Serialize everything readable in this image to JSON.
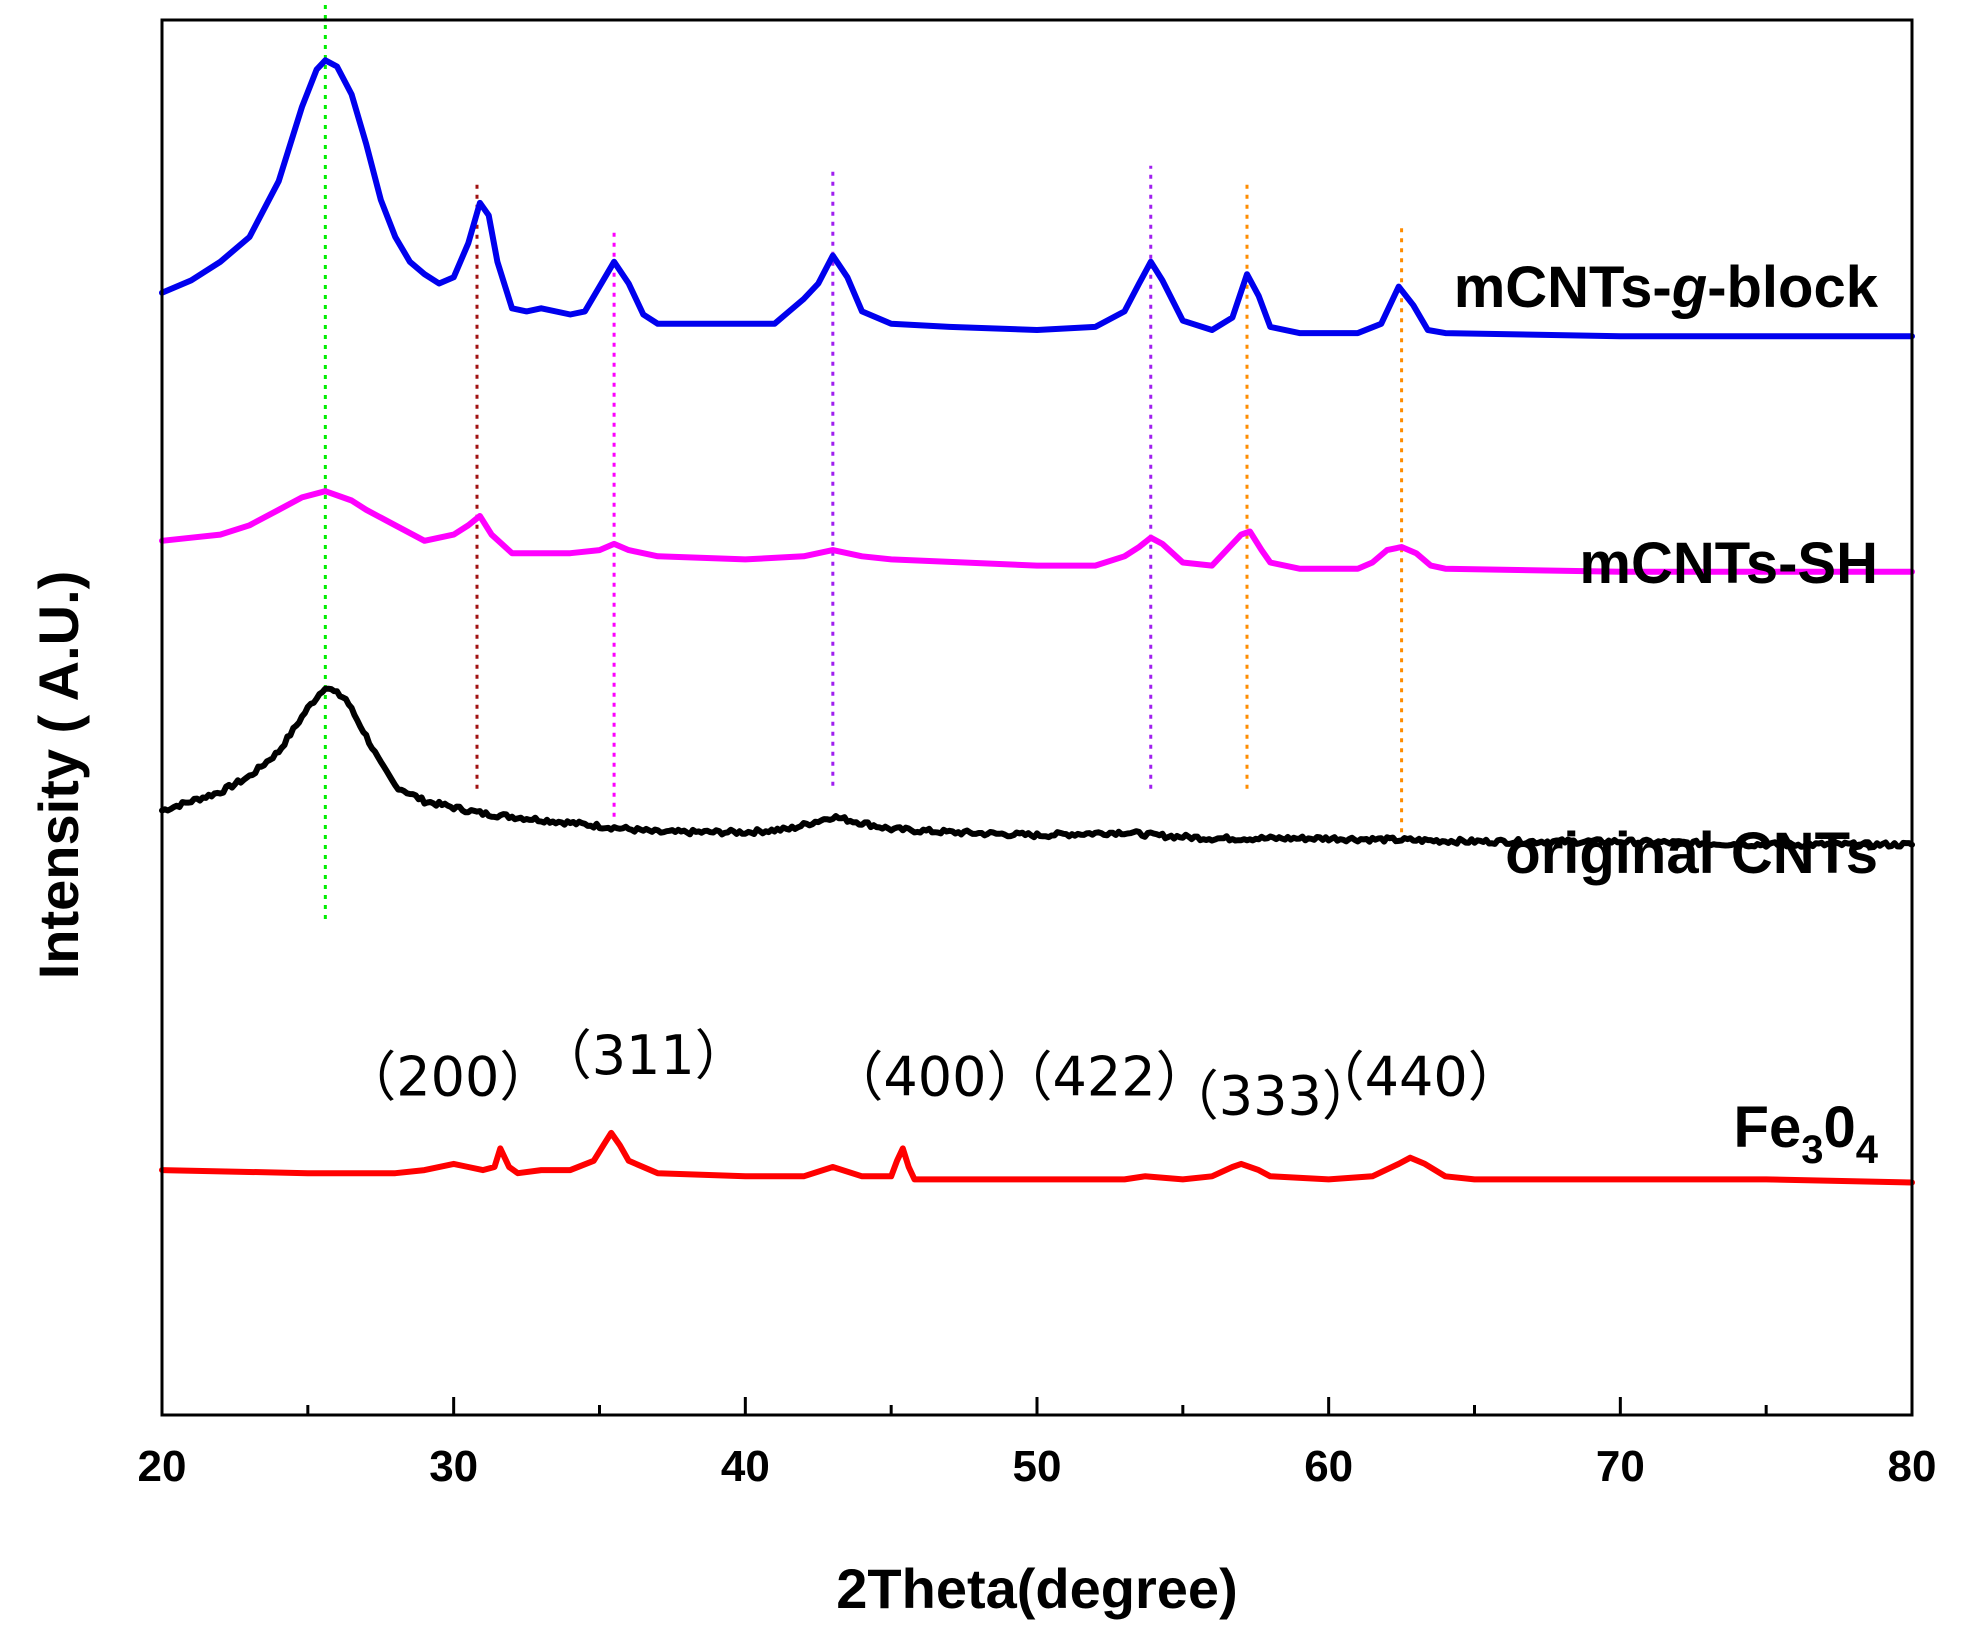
{
  "chart_data": {
    "type": "line",
    "title": "",
    "xlabel": "2Theta(degree)",
    "ylabel": "Intensity ( A.U.)",
    "xlim": [
      20,
      80
    ],
    "ylim": [
      0,
      4.5
    ],
    "grid": false,
    "yticks_visible": false,
    "xticks": [
      20,
      30,
      40,
      50,
      60,
      70,
      80
    ],
    "xtick_labels": [
      "20",
      "30",
      "40",
      "50",
      "60",
      "70",
      "80"
    ],
    "series": [
      {
        "name": "mCNTs-g-block",
        "label_parts": [
          {
            "text": "mCNTs-",
            "style": "normal",
            "baseline": "normal"
          },
          {
            "text": "g",
            "style": "italic",
            "baseline": "normal"
          },
          {
            "text": "-block",
            "style": "normal",
            "baseline": "normal"
          }
        ],
        "color": "#0000ee",
        "points": [
          [
            20,
            3.62
          ],
          [
            21,
            3.66
          ],
          [
            22,
            3.72
          ],
          [
            23,
            3.8
          ],
          [
            24,
            3.98
          ],
          [
            24.8,
            4.22
          ],
          [
            25.3,
            4.34
          ],
          [
            25.6,
            4.37
          ],
          [
            26,
            4.35
          ],
          [
            26.5,
            4.26
          ],
          [
            27,
            4.1
          ],
          [
            27.5,
            3.92
          ],
          [
            28,
            3.8
          ],
          [
            28.5,
            3.72
          ],
          [
            29,
            3.68
          ],
          [
            29.5,
            3.65
          ],
          [
            30,
            3.67
          ],
          [
            30.5,
            3.78
          ],
          [
            30.9,
            3.91
          ],
          [
            31.2,
            3.87
          ],
          [
            31.5,
            3.72
          ],
          [
            32,
            3.57
          ],
          [
            32.5,
            3.56
          ],
          [
            33,
            3.57
          ],
          [
            34,
            3.55
          ],
          [
            34.5,
            3.56
          ],
          [
            35,
            3.64
          ],
          [
            35.5,
            3.72
          ],
          [
            36,
            3.65
          ],
          [
            36.5,
            3.55
          ],
          [
            37,
            3.52
          ],
          [
            38,
            3.52
          ],
          [
            40,
            3.52
          ],
          [
            41,
            3.52
          ],
          [
            41.5,
            3.56
          ],
          [
            42,
            3.6
          ],
          [
            42.5,
            3.65
          ],
          [
            43,
            3.74
          ],
          [
            43.5,
            3.67
          ],
          [
            44,
            3.56
          ],
          [
            45,
            3.52
          ],
          [
            47,
            3.51
          ],
          [
            50,
            3.5
          ],
          [
            52,
            3.51
          ],
          [
            53,
            3.56
          ],
          [
            53.5,
            3.65
          ],
          [
            53.9,
            3.72
          ],
          [
            54.3,
            3.66
          ],
          [
            55,
            3.53
          ],
          [
            56,
            3.5
          ],
          [
            56.7,
            3.54
          ],
          [
            57.2,
            3.68
          ],
          [
            57.6,
            3.61
          ],
          [
            58,
            3.51
          ],
          [
            59,
            3.49
          ],
          [
            61,
            3.49
          ],
          [
            61.8,
            3.52
          ],
          [
            62.4,
            3.64
          ],
          [
            62.9,
            3.58
          ],
          [
            63.4,
            3.5
          ],
          [
            64,
            3.49
          ],
          [
            70,
            3.48
          ],
          [
            75,
            3.48
          ],
          [
            80,
            3.48
          ]
        ]
      },
      {
        "name": "mCNTs-SH",
        "label_parts": [
          {
            "text": "mCNTs-SH",
            "style": "normal",
            "baseline": "normal"
          }
        ],
        "color": "#ff00ff",
        "points": [
          [
            20,
            2.82
          ],
          [
            21,
            2.83
          ],
          [
            22,
            2.84
          ],
          [
            23,
            2.87
          ],
          [
            24,
            2.92
          ],
          [
            24.8,
            2.96
          ],
          [
            25.6,
            2.98
          ],
          [
            26.5,
            2.95
          ],
          [
            27,
            2.92
          ],
          [
            28,
            2.87
          ],
          [
            29,
            2.82
          ],
          [
            30,
            2.84
          ],
          [
            30.5,
            2.87
          ],
          [
            30.9,
            2.9
          ],
          [
            31.3,
            2.84
          ],
          [
            32,
            2.78
          ],
          [
            33,
            2.78
          ],
          [
            34,
            2.78
          ],
          [
            35,
            2.79
          ],
          [
            35.5,
            2.81
          ],
          [
            36,
            2.79
          ],
          [
            37,
            2.77
          ],
          [
            40,
            2.76
          ],
          [
            42,
            2.77
          ],
          [
            43,
            2.79
          ],
          [
            44,
            2.77
          ],
          [
            45,
            2.76
          ],
          [
            50,
            2.74
          ],
          [
            52,
            2.74
          ],
          [
            53,
            2.77
          ],
          [
            53.5,
            2.8
          ],
          [
            53.9,
            2.83
          ],
          [
            54.3,
            2.81
          ],
          [
            55,
            2.75
          ],
          [
            56,
            2.74
          ],
          [
            56.5,
            2.79
          ],
          [
            57,
            2.84
          ],
          [
            57.3,
            2.85
          ],
          [
            57.7,
            2.79
          ],
          [
            58,
            2.75
          ],
          [
            59,
            2.73
          ],
          [
            61,
            2.73
          ],
          [
            61.5,
            2.75
          ],
          [
            62,
            2.79
          ],
          [
            62.5,
            2.8
          ],
          [
            63,
            2.78
          ],
          [
            63.5,
            2.74
          ],
          [
            64,
            2.73
          ],
          [
            70,
            2.72
          ],
          [
            75,
            2.72
          ],
          [
            80,
            2.72
          ]
        ]
      },
      {
        "name": "original CNTs",
        "label_parts": [
          {
            "text": "original CNTs",
            "style": "normal",
            "baseline": "normal"
          }
        ],
        "color": "#000000",
        "noise": 0.008,
        "points": [
          [
            20,
            1.95
          ],
          [
            21,
            1.98
          ],
          [
            22,
            2.01
          ],
          [
            23,
            2.06
          ],
          [
            24,
            2.14
          ],
          [
            25,
            2.28
          ],
          [
            25.6,
            2.35
          ],
          [
            26.3,
            2.31
          ],
          [
            27,
            2.19
          ],
          [
            27.5,
            2.1
          ],
          [
            28,
            2.03
          ],
          [
            29,
            1.98
          ],
          [
            30,
            1.96
          ],
          [
            31,
            1.94
          ],
          [
            32,
            1.93
          ],
          [
            33,
            1.92
          ],
          [
            35,
            1.9
          ],
          [
            37,
            1.88
          ],
          [
            40,
            1.88
          ],
          [
            41.5,
            1.89
          ],
          [
            43,
            1.93
          ],
          [
            44,
            1.91
          ],
          [
            45,
            1.89
          ],
          [
            47,
            1.88
          ],
          [
            50,
            1.87
          ],
          [
            53,
            1.88
          ],
          [
            54,
            1.87
          ],
          [
            56,
            1.86
          ],
          [
            60,
            1.86
          ],
          [
            65,
            1.85
          ],
          [
            70,
            1.85
          ],
          [
            75,
            1.84
          ],
          [
            80,
            1.84
          ]
        ]
      },
      {
        "name": "Fe3O4",
        "label_parts": [
          {
            "text": "Fe",
            "style": "normal",
            "baseline": "normal"
          },
          {
            "text": "3",
            "style": "normal",
            "baseline": "sub"
          },
          {
            "text": "0",
            "style": "normal",
            "baseline": "normal"
          },
          {
            "text": "4",
            "style": "normal",
            "baseline": "sub"
          }
        ],
        "color": "#ff0000",
        "points": [
          [
            20,
            0.79
          ],
          [
            25,
            0.78
          ],
          [
            28,
            0.78
          ],
          [
            29,
            0.79
          ],
          [
            30,
            0.81
          ],
          [
            30.5,
            0.8
          ],
          [
            31,
            0.79
          ],
          [
            31.4,
            0.8
          ],
          [
            31.6,
            0.86
          ],
          [
            31.9,
            0.8
          ],
          [
            32.2,
            0.78
          ],
          [
            33,
            0.79
          ],
          [
            34,
            0.79
          ],
          [
            34.8,
            0.82
          ],
          [
            35.2,
            0.88
          ],
          [
            35.4,
            0.91
          ],
          [
            35.7,
            0.87
          ],
          [
            36,
            0.82
          ],
          [
            37,
            0.78
          ],
          [
            40,
            0.77
          ],
          [
            42,
            0.77
          ],
          [
            43,
            0.8
          ],
          [
            44,
            0.77
          ],
          [
            45,
            0.77
          ],
          [
            45.2,
            0.82
          ],
          [
            45.4,
            0.86
          ],
          [
            45.6,
            0.8
          ],
          [
            45.8,
            0.76
          ],
          [
            47,
            0.76
          ],
          [
            50,
            0.76
          ],
          [
            53,
            0.76
          ],
          [
            53.7,
            0.77
          ],
          [
            55,
            0.76
          ],
          [
            56,
            0.77
          ],
          [
            56.7,
            0.8
          ],
          [
            57,
            0.81
          ],
          [
            57.6,
            0.79
          ],
          [
            58,
            0.77
          ],
          [
            60,
            0.76
          ],
          [
            61.5,
            0.77
          ],
          [
            62.4,
            0.81
          ],
          [
            62.8,
            0.83
          ],
          [
            63.3,
            0.81
          ],
          [
            64,
            0.77
          ],
          [
            65,
            0.76
          ],
          [
            70,
            0.76
          ],
          [
            75,
            0.76
          ],
          [
            80,
            0.75
          ]
        ]
      }
    ],
    "reference_lines": [
      {
        "x": 25.6,
        "color": "#00ee00",
        "y_range": [
          1.6,
          4.55
        ]
      },
      {
        "x": 30.8,
        "color": "#a01010",
        "y_range": [
          2.02,
          3.98
        ]
      },
      {
        "x": 35.5,
        "color": "#ff00ff",
        "y_range": [
          1.93,
          3.82
        ]
      },
      {
        "x": 43.0,
        "color": "#a020f0",
        "y_range": [
          2.03,
          4.03
        ]
      },
      {
        "x": 53.9,
        "color": "#a020f0",
        "y_range": [
          2.02,
          4.03
        ]
      },
      {
        "x": 57.2,
        "color": "#ff8c00",
        "y_range": [
          2.02,
          3.97
        ]
      },
      {
        "x": 62.5,
        "color": "#ff8c00",
        "y_range": [
          1.88,
          3.83
        ]
      }
    ],
    "annotations": [
      {
        "text": "（200）",
        "x": 29.8,
        "y": 1.03
      },
      {
        "text": "（311）",
        "x": 36.5,
        "y": 1.1
      },
      {
        "text": "（400）",
        "x": 46.5,
        "y": 1.03
      },
      {
        "text": "（422）",
        "x": 52.3,
        "y": 1.03
      },
      {
        "text": "（333）",
        "x": 58.0,
        "y": 0.97
      },
      {
        "text": "（440）",
        "x": 63.0,
        "y": 1.03
      }
    ]
  }
}
